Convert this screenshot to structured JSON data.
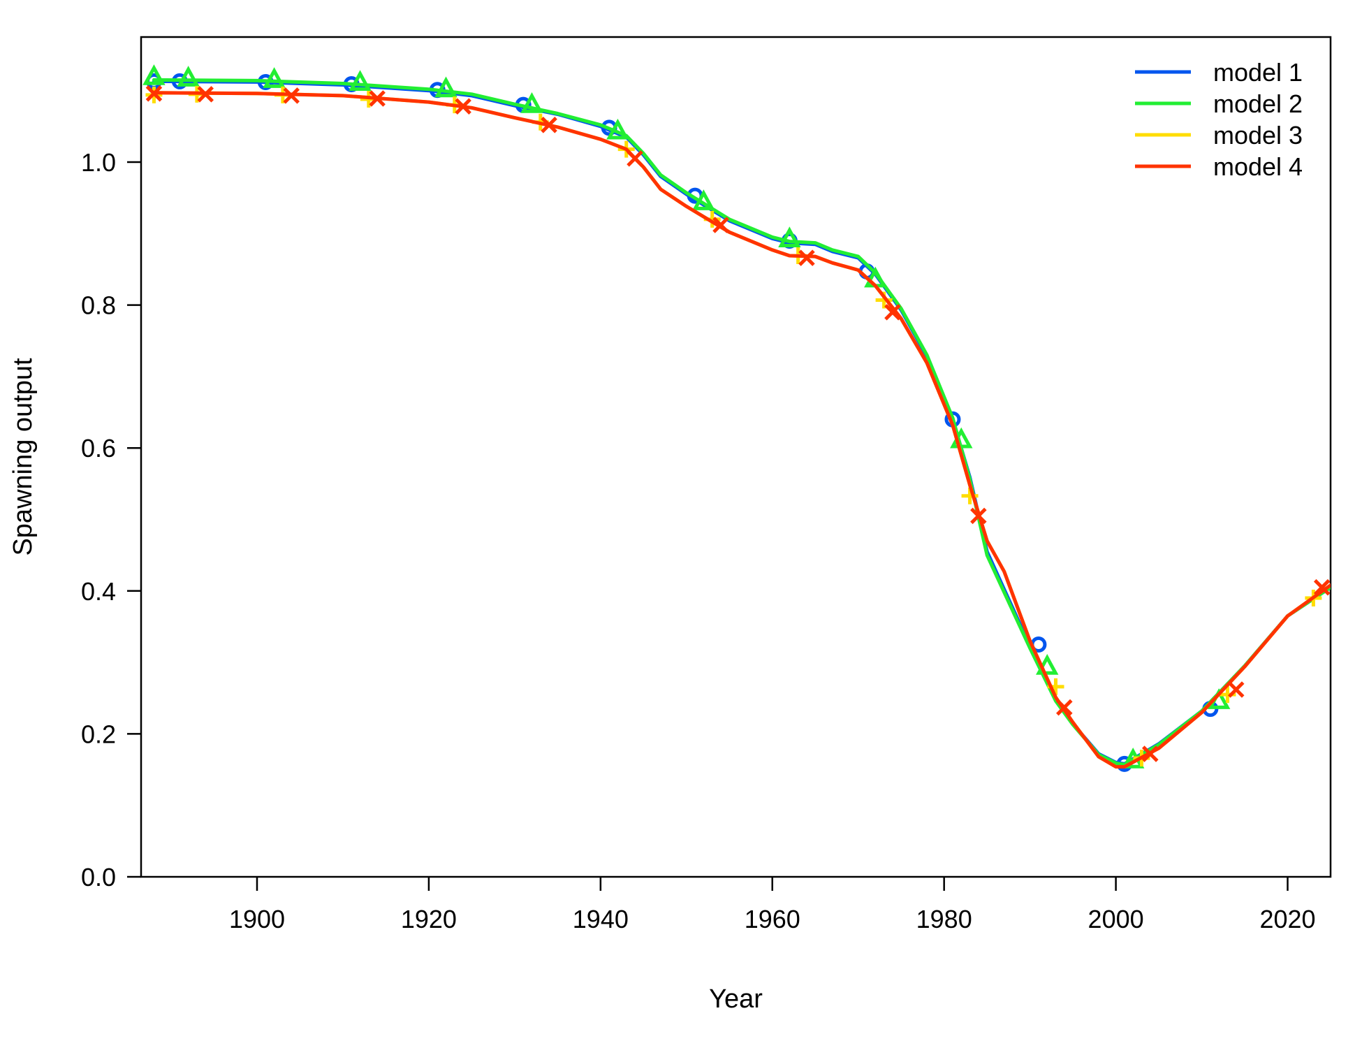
{
  "chart_data": {
    "type": "line",
    "title": "",
    "xlabel": "Year",
    "ylabel": "Spawning output",
    "xlim": [
      1886.5,
      2025
    ],
    "ylim": [
      0,
      1.175
    ],
    "x_ticks": [
      1900,
      1920,
      1940,
      1960,
      1980,
      2000,
      2020
    ],
    "y_ticks": [
      0.0,
      0.2,
      0.4,
      0.6,
      0.8,
      1.0
    ],
    "y_tick_labels": [
      "0.0",
      "0.2",
      "0.4",
      "0.6",
      "0.8",
      "1.0"
    ],
    "grid": false,
    "legend_position": "top-right",
    "series": [
      {
        "name": "model 1",
        "color": "#0055ee",
        "marker": "circle",
        "x": [
          1888,
          1900,
          1910,
          1920,
          1925,
          1930,
          1935,
          1940,
          1943,
          1945,
          1947,
          1950,
          1955,
          1960,
          1962,
          1965,
          1967,
          1970,
          1972,
          1975,
          1978,
          1981,
          1983,
          1985,
          1987,
          1990,
          1993,
          1995,
          1998,
          2000,
          2001,
          2005,
          2010,
          2015,
          2020,
          2025
        ],
        "y": [
          1.113,
          1.112,
          1.108,
          1.1,
          1.093,
          1.079,
          1.067,
          1.05,
          1.035,
          1.01,
          0.98,
          0.955,
          0.918,
          0.893,
          0.887,
          0.885,
          0.875,
          0.866,
          0.843,
          0.793,
          0.728,
          0.64,
          0.559,
          0.455,
          0.402,
          0.323,
          0.248,
          0.214,
          0.172,
          0.16,
          0.158,
          0.186,
          0.232,
          0.295,
          0.365,
          0.405
        ],
        "marker_x": [
          1888,
          1891,
          1901,
          1911,
          1921,
          1931,
          1941,
          1951,
          1962,
          1971,
          1981,
          1991,
          2001,
          2011
        ],
        "marker_y": [
          1.113,
          1.113,
          1.112,
          1.109,
          1.101,
          1.08,
          1.048,
          0.953,
          0.89,
          0.847,
          0.64,
          0.325,
          0.158,
          0.235
        ]
      },
      {
        "name": "model 2",
        "color": "#22ee33",
        "marker": "triangle",
        "x": [
          1888,
          1900,
          1910,
          1920,
          1925,
          1930,
          1935,
          1940,
          1943,
          1945,
          1947,
          1950,
          1955,
          1960,
          1962,
          1965,
          1967,
          1970,
          1972,
          1975,
          1978,
          1981,
          1983,
          1985,
          1987,
          1990,
          1993,
          1995,
          1998,
          2000,
          2001,
          2005,
          2010,
          2015,
          2020,
          2025
        ],
        "y": [
          1.115,
          1.114,
          1.11,
          1.102,
          1.095,
          1.081,
          1.068,
          1.052,
          1.037,
          1.012,
          0.982,
          0.957,
          0.92,
          0.895,
          0.889,
          0.887,
          0.877,
          0.868,
          0.845,
          0.795,
          0.73,
          0.642,
          0.556,
          0.45,
          0.398,
          0.32,
          0.246,
          0.213,
          0.171,
          0.159,
          0.157,
          0.185,
          0.232,
          0.295,
          0.365,
          0.405
        ],
        "marker_x": [
          1888,
          1892,
          1902,
          1912,
          1922,
          1932,
          1942,
          1952,
          1962,
          1972,
          1982,
          1992,
          2002,
          2012
        ],
        "marker_y": [
          1.118,
          1.116,
          1.114,
          1.11,
          1.101,
          1.079,
          1.042,
          0.943,
          0.891,
          0.835,
          0.61,
          0.293,
          0.162,
          0.245
        ]
      },
      {
        "name": "model 3",
        "color": "#ffdd00",
        "marker": "plus",
        "x": [
          1888,
          1900,
          1910,
          1920,
          1925,
          1930,
          1935,
          1940,
          1943,
          1945,
          1947,
          1950,
          1955,
          1960,
          1962,
          1965,
          1967,
          1970,
          1972,
          1975,
          1978,
          1981,
          1983,
          1985,
          1987,
          1990,
          1993,
          1995,
          1998,
          2000,
          2001,
          2005,
          2010,
          2015,
          2020,
          2025
        ],
        "y": [
          1.097,
          1.096,
          1.093,
          1.084,
          1.076,
          1.062,
          1.049,
          1.032,
          1.018,
          0.993,
          0.962,
          0.938,
          0.902,
          0.877,
          0.869,
          0.868,
          0.859,
          0.849,
          0.827,
          0.781,
          0.719,
          0.632,
          0.548,
          0.47,
          0.427,
          0.33,
          0.251,
          0.216,
          0.168,
          0.154,
          0.154,
          0.18,
          0.23,
          0.294,
          0.365,
          0.408
        ],
        "marker_x": [
          1888,
          1893,
          1903,
          1913,
          1923,
          1933,
          1943,
          1953,
          1963,
          1973,
          1983,
          1993,
          2003,
          2013,
          2023
        ],
        "marker_y": [
          1.094,
          1.095,
          1.094,
          1.088,
          1.08,
          1.056,
          1.018,
          0.92,
          0.869,
          0.807,
          0.533,
          0.266,
          0.166,
          0.255,
          0.39
        ]
      },
      {
        "name": "model 4",
        "color": "#ff3300",
        "marker": "cross",
        "x": [
          1888,
          1900,
          1910,
          1920,
          1925,
          1930,
          1935,
          1940,
          1943,
          1945,
          1947,
          1950,
          1955,
          1960,
          1962,
          1965,
          1967,
          1970,
          1972,
          1975,
          1978,
          1981,
          1983,
          1985,
          1987,
          1990,
          1993,
          1995,
          1998,
          2000,
          2001,
          2005,
          2010,
          2015,
          2020,
          2025
        ],
        "y": [
          1.097,
          1.096,
          1.093,
          1.084,
          1.076,
          1.062,
          1.049,
          1.032,
          1.018,
          0.993,
          0.962,
          0.938,
          0.902,
          0.877,
          0.869,
          0.868,
          0.859,
          0.849,
          0.827,
          0.781,
          0.719,
          0.632,
          0.548,
          0.47,
          0.427,
          0.33,
          0.251,
          0.216,
          0.168,
          0.154,
          0.154,
          0.18,
          0.23,
          0.294,
          0.365,
          0.408
        ],
        "marker_x": [
          1888,
          1894,
          1904,
          1914,
          1924,
          1934,
          1944,
          1954,
          1964,
          1974,
          1984,
          1994,
          2004,
          2014,
          2024
        ],
        "marker_y": [
          1.096,
          1.095,
          1.093,
          1.089,
          1.078,
          1.052,
          1.005,
          0.912,
          0.866,
          0.79,
          0.505,
          0.237,
          0.172,
          0.262,
          0.405
        ]
      }
    ]
  }
}
